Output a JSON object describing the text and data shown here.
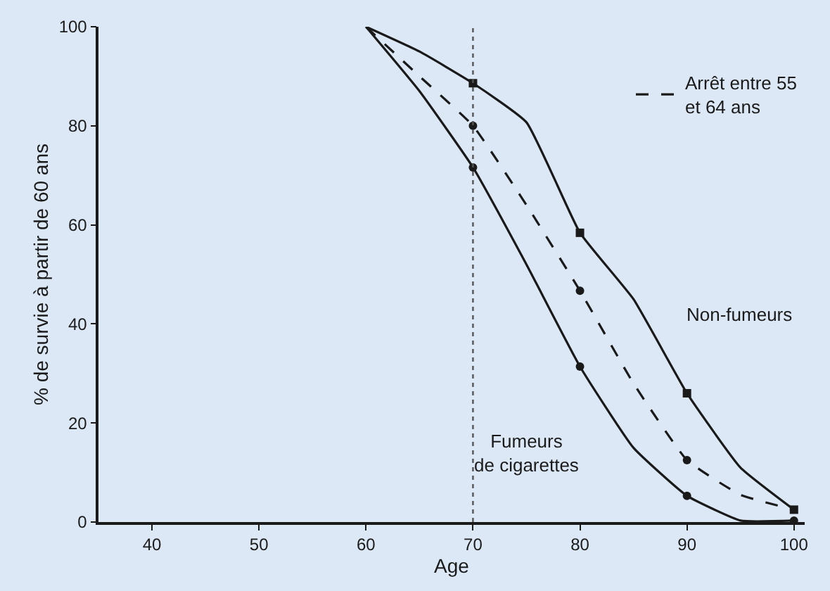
{
  "chart_data": {
    "type": "line",
    "xlabel": "Age",
    "ylabel": "% de survie à partir de 60 ans",
    "xlim": [
      35,
      101
    ],
    "xticks": [
      40,
      50,
      60,
      70,
      80,
      90,
      100
    ],
    "ylim": [
      0,
      100
    ],
    "yticks": [
      0,
      20,
      40,
      60,
      80,
      100
    ],
    "grid": false,
    "legend": "top right",
    "series": [
      {
        "name": "Non-fumeurs",
        "color": "#1a1a1a",
        "x": [
          60,
          65,
          70,
          75,
          80,
          85,
          90,
          95,
          100
        ],
        "values": [
          100,
          95,
          88.6,
          80.7,
          58.4,
          45,
          26,
          11,
          2.5
        ],
        "marker": "none",
        "line_style": "solid"
      },
      {
        "name": "Arrêt entre 55 et 64 ans",
        "color": "#1a1a1a",
        "x": [
          60,
          65,
          70,
          75,
          80,
          85,
          90,
          95,
          100
        ],
        "values": [
          100,
          90,
          80,
          64,
          46.7,
          28,
          12.5,
          5.5,
          2.5
        ],
        "marker": "none",
        "line_style": "dashed"
      },
      {
        "name": "Fumeurs de cigarettes",
        "color": "#1a1a1a",
        "x": [
          60,
          65,
          70,
          75,
          80,
          85,
          90,
          95,
          100
        ],
        "values": [
          100,
          87,
          71.6,
          52,
          31.4,
          15,
          5.3,
          0.3,
          0.3
        ],
        "marker": "none",
        "line_style": "solid"
      },
      {
        "type": "scatter",
        "color": "#1a1a1a",
        "x": [
          70,
          80,
          90,
          100
        ],
        "values": [
          88.6,
          58.4,
          26,
          2.5
        ],
        "marker": "square"
      },
      {
        "type": "scatter",
        "color": "#1a1a1a",
        "x": [
          70,
          80,
          90
        ],
        "values": [
          80,
          46.7,
          12.5
        ],
        "marker": "circle"
      },
      {
        "type": "scatter",
        "color": "#1a1a1a",
        "x": [
          70,
          80,
          90,
          100
        ],
        "values": [
          71.6,
          31.4,
          5.3,
          0.3
        ],
        "marker": "circle"
      }
    ],
    "ref_lines": [
      {
        "axis": "x",
        "value": 70,
        "line_style": "dotted",
        "color": "#555555"
      }
    ]
  }
}
